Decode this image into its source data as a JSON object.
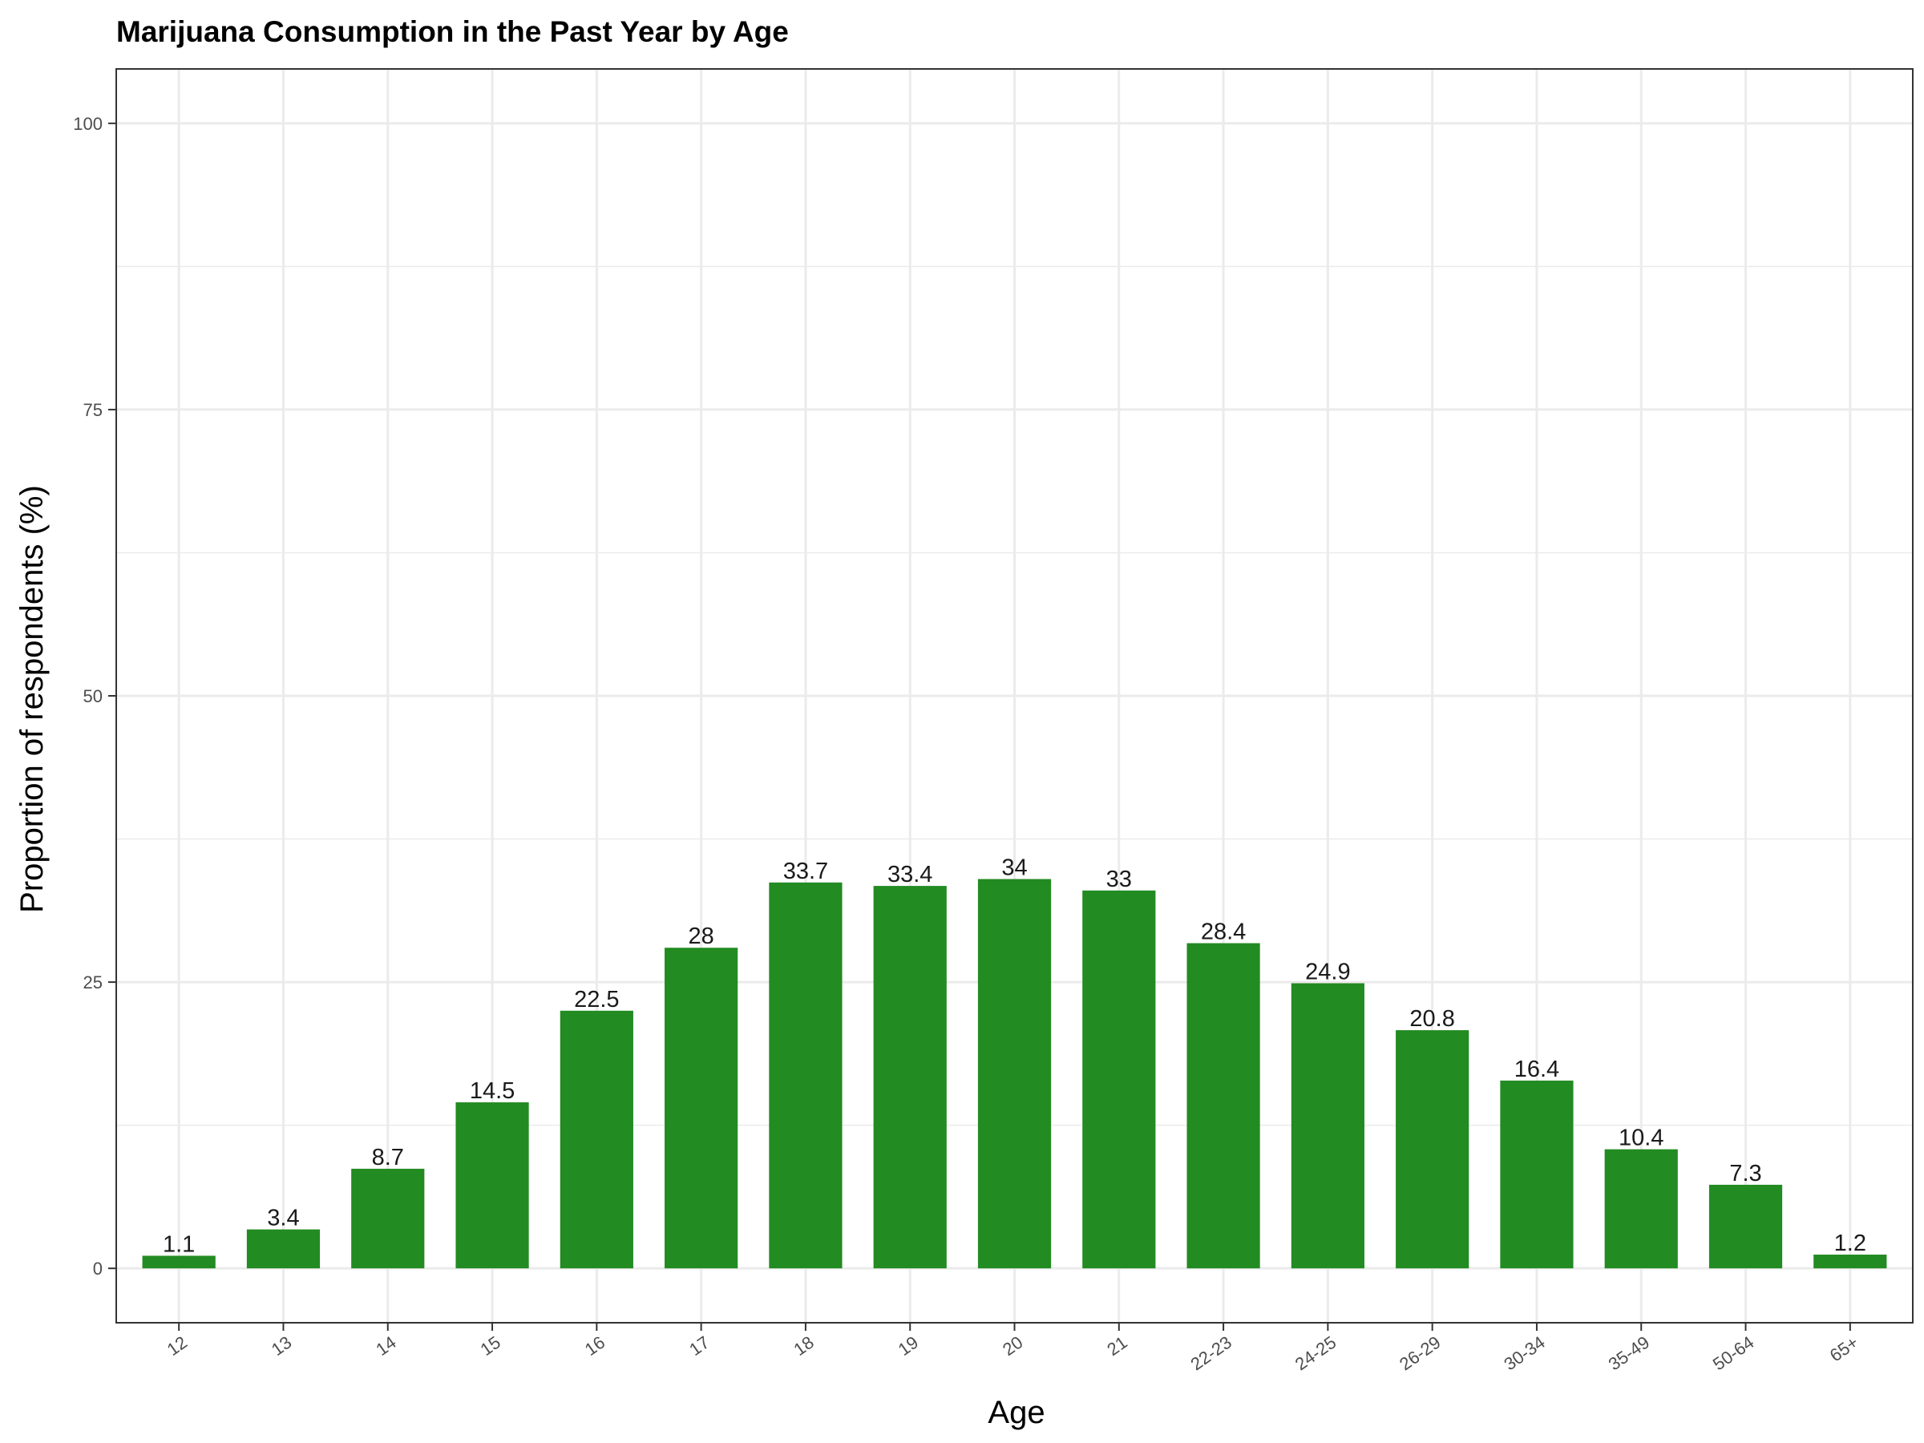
{
  "chart_data": {
    "type": "bar",
    "title": "Marijuana Consumption in the Past Year by Age",
    "xlabel": "Age",
    "ylabel": "Proportion of respondents (%)",
    "categories": [
      "12",
      "13",
      "14",
      "15",
      "16",
      "17",
      "18",
      "19",
      "20",
      "21",
      "22-23",
      "24-25",
      "26-29",
      "30-34",
      "35-49",
      "50-64",
      "65+"
    ],
    "values": [
      1.1,
      3.4,
      8.7,
      14.5,
      22.5,
      28,
      33.7,
      33.4,
      34,
      33,
      28.4,
      24.9,
      20.8,
      16.4,
      10.4,
      7.3,
      1.2
    ],
    "data_labels": [
      "1.1",
      "3.4",
      "8.7",
      "14.5",
      "22.5",
      "28",
      "33.7",
      "33.4",
      "34",
      "33",
      "28.4",
      "24.9",
      "20.8",
      "16.4",
      "10.4",
      "7.3",
      "1.2"
    ],
    "ylim": [
      -4.75,
      104.75
    ],
    "yticks": [
      0,
      25,
      50,
      75,
      100
    ],
    "ytick_labels": [
      "0",
      "25",
      "50",
      "75",
      "100"
    ],
    "grid": true,
    "bar_color": "#228B22",
    "grid_color": "#EBEBEB",
    "panel_border_color": "#333333"
  }
}
